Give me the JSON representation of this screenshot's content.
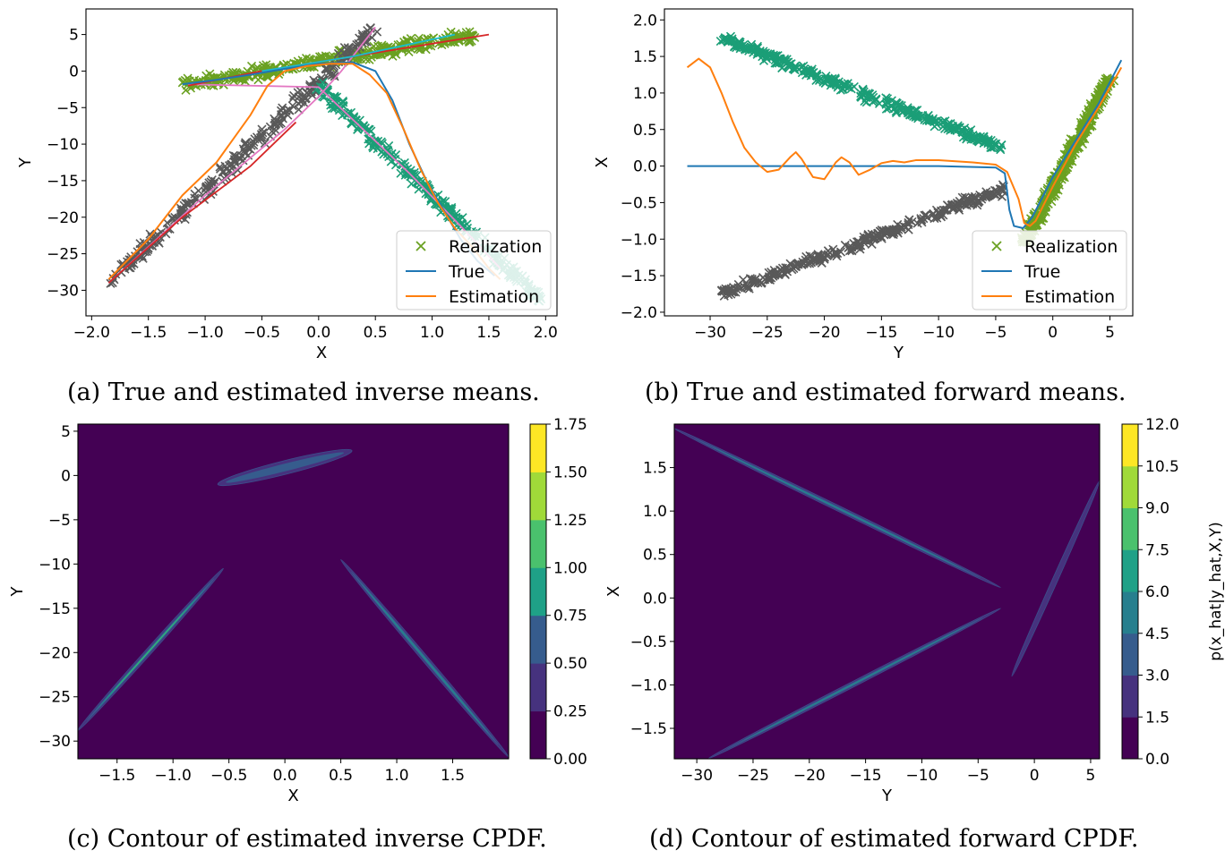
{
  "captions": {
    "a": "(a) True and estimated inverse means.",
    "b": "(b) True and estimated forward means.",
    "c": "(c) Contour of estimated inverse CPDF.",
    "d": "(d) Contour of estimated forward CPDF."
  },
  "colors": {
    "realization_green": "#6aa121",
    "realization_gray": "#595959",
    "realization_teal": "#1b9e77",
    "true": "#1f77b4",
    "estimation": "#ff7f0e",
    "pink": "#e377c2",
    "red": "#d62728",
    "cyan": "#17becf",
    "contour_levels": [
      "#440154",
      "#46327e",
      "#365c8d",
      "#277f8e",
      "#1fa187",
      "#4ac16d",
      "#a0da39",
      "#fde725"
    ]
  },
  "chart_data": [
    {
      "id": "a",
      "type": "scatter",
      "xlabel": "X",
      "ylabel": "Y",
      "xlim": [
        -2.05,
        2.1
      ],
      "ylim": [
        -33.5,
        8.5
      ],
      "xticks": [
        -2.0,
        -1.5,
        -1.0,
        -0.5,
        0.0,
        0.5,
        1.0,
        1.5,
        2.0
      ],
      "xticklabels": [
        "−2.0",
        "−1.5",
        "−1.0",
        "−0.5",
        "0.0",
        "0.5",
        "1.0",
        "1.5",
        "2.0"
      ],
      "yticks": [
        5,
        0,
        -5,
        -10,
        -15,
        -20,
        -25,
        -30
      ],
      "yticklabels": [
        "5",
        "0",
        "−5",
        "−10",
        "−15",
        "−20",
        "−25",
        "−30"
      ],
      "legend": {
        "placement": "lower right",
        "entries": [
          "Realization",
          "True",
          "Estimation"
        ]
      },
      "realization_clusters": [
        {
          "color": "green",
          "from": [
            -1.2,
            -2.0
          ],
          "to": [
            1.4,
            5.0
          ],
          "spread": 1.0,
          "count": 340
        },
        {
          "color": "gray",
          "from": [
            -1.85,
            -29.0
          ],
          "to": [
            0.5,
            6.0
          ],
          "spread": 0.9,
          "count": 260
        },
        {
          "color": "teal",
          "from": [
            0.0,
            -2.0
          ],
          "to": [
            2.0,
            -32.0
          ],
          "spread": 1.0,
          "count": 260
        }
      ],
      "true_curve": [
        [
          -1.2,
          -1.8
        ],
        [
          -0.9,
          -1.2
        ],
        [
          -0.6,
          -0.5
        ],
        [
          -0.3,
          0.3
        ],
        [
          0.0,
          1.0
        ],
        [
          0.3,
          1.2
        ],
        [
          0.5,
          0.0
        ],
        [
          0.65,
          -4.0
        ],
        [
          0.8,
          -10.0
        ],
        [
          0.95,
          -15.0
        ],
        [
          1.1,
          -19.0
        ],
        [
          1.25,
          -23.0
        ],
        [
          1.4,
          -26.0
        ],
        [
          1.55,
          -28.0
        ]
      ],
      "estimation_curve": [
        [
          -1.85,
          -28.5
        ],
        [
          -1.5,
          -23.0
        ],
        [
          -1.2,
          -17.0
        ],
        [
          -0.9,
          -12.5
        ],
        [
          -0.6,
          -6.0
        ],
        [
          -0.45,
          -2.0
        ],
        [
          -0.3,
          0.0
        ],
        [
          -0.1,
          0.7
        ],
        [
          0.1,
          1.0
        ],
        [
          0.3,
          1.0
        ],
        [
          0.45,
          -0.5
        ],
        [
          0.6,
          -3.0
        ],
        [
          0.75,
          -8.0
        ],
        [
          0.9,
          -13.5
        ],
        [
          1.05,
          -18.0
        ],
        [
          1.2,
          -21.5
        ],
        [
          1.35,
          -24.0
        ],
        [
          1.5,
          -27.0
        ],
        [
          1.6,
          -28.5
        ]
      ],
      "extra_lines": [
        {
          "color": "pink",
          "points": [
            [
              -1.85,
              -29.0
            ],
            [
              -1.0,
              -17.0
            ],
            [
              -0.3,
              -8.0
            ],
            [
              0.0,
              -3.5
            ],
            [
              0.2,
              0.0
            ],
            [
              0.5,
              6.0
            ]
          ]
        },
        {
          "color": "pink",
          "points": [
            [
              -1.15,
              -1.8
            ],
            [
              -0.9,
              -1.9
            ],
            [
              0.0,
              -2.2
            ],
            [
              0.8,
              -14.0
            ],
            [
              1.3,
              -22.0
            ],
            [
              1.6,
              -27.0
            ]
          ]
        },
        {
          "color": "red",
          "points": [
            [
              -1.85,
              -29.0
            ],
            [
              -1.2,
              -20.0
            ],
            [
              -0.6,
              -13.0
            ],
            [
              -0.2,
              -7.0
            ]
          ]
        },
        {
          "color": "red",
          "points": [
            [
              -1.15,
              -2.0
            ],
            [
              -0.5,
              0.0
            ],
            [
              0.3,
              2.0
            ],
            [
              1.5,
              5.0
            ]
          ]
        },
        {
          "color": "cyan",
          "points": [
            [
              -0.5,
              0.0
            ],
            [
              0.3,
              2.0
            ],
            [
              1.2,
              5.0
            ]
          ]
        }
      ]
    },
    {
      "id": "b",
      "type": "scatter",
      "xlabel": "Y",
      "ylabel": "X",
      "xlim": [
        -34.0,
        7.0
      ],
      "ylim": [
        -2.05,
        2.15
      ],
      "xticks": [
        -30,
        -25,
        -20,
        -15,
        -10,
        -5,
        0,
        5
      ],
      "xticklabels": [
        "−30",
        "−25",
        "−20",
        "−15",
        "−10",
        "−5",
        "0",
        "5"
      ],
      "yticks": [
        2.0,
        1.5,
        1.0,
        0.5,
        0.0,
        -0.5,
        -1.0,
        -1.5,
        -2.0
      ],
      "yticklabels": [
        "2.0",
        "1.5",
        "1.0",
        "0.5",
        "0.0",
        "−0.5",
        "−1.0",
        "−1.5",
        "−2.0"
      ],
      "legend": {
        "placement": "lower right",
        "entries": [
          "Realization",
          "True",
          "Estimation"
        ]
      },
      "realization_clusters": [
        {
          "color": "teal",
          "from": [
            -29.0,
            1.75
          ],
          "to": [
            -4.5,
            0.25
          ],
          "spread": 0.06,
          "count": 330
        },
        {
          "color": "gray",
          "from": [
            -29.0,
            -1.75
          ],
          "to": [
            -4.0,
            -0.3
          ],
          "spread": 0.06,
          "count": 300
        },
        {
          "color": "green",
          "from": [
            -2.5,
            -1.05
          ],
          "to": [
            5.0,
            1.2
          ],
          "spread": 0.09,
          "count": 420
        }
      ],
      "true_curve": [
        [
          -32.0,
          0.0
        ],
        [
          -10.0,
          0.0
        ],
        [
          -5.0,
          -0.02
        ],
        [
          -4.2,
          -0.1
        ],
        [
          -3.8,
          -0.6
        ],
        [
          -3.4,
          -0.82
        ],
        [
          -2.6,
          -0.85
        ],
        [
          -1.8,
          -0.7
        ],
        [
          0.0,
          -0.15
        ],
        [
          2.0,
          0.35
        ],
        [
          4.0,
          0.85
        ],
        [
          6.0,
          1.45
        ]
      ],
      "estimation_curve": [
        [
          -32.0,
          1.35
        ],
        [
          -31.0,
          1.47
        ],
        [
          -30.0,
          1.35
        ],
        [
          -29.0,
          1.0
        ],
        [
          -28.0,
          0.6
        ],
        [
          -27.0,
          0.25
        ],
        [
          -26.0,
          0.05
        ],
        [
          -25.0,
          -0.08
        ],
        [
          -24.0,
          -0.05
        ],
        [
          -23.0,
          0.12
        ],
        [
          -22.5,
          0.19
        ],
        [
          -22.0,
          0.1
        ],
        [
          -21.0,
          -0.15
        ],
        [
          -20.0,
          -0.18
        ],
        [
          -19.0,
          0.05
        ],
        [
          -18.5,
          0.12
        ],
        [
          -17.8,
          0.05
        ],
        [
          -17.0,
          -0.12
        ],
        [
          -16.0,
          -0.05
        ],
        [
          -15.0,
          0.04
        ],
        [
          -14.0,
          0.07
        ],
        [
          -13.0,
          0.05
        ],
        [
          -12.0,
          0.08
        ],
        [
          -10.0,
          0.08
        ],
        [
          -7.0,
          0.05
        ],
        [
          -5.0,
          0.02
        ],
        [
          -4.0,
          -0.08
        ],
        [
          -3.0,
          -0.45
        ],
        [
          -2.5,
          -0.78
        ],
        [
          -2.0,
          -0.82
        ],
        [
          -1.5,
          -0.75
        ],
        [
          0.0,
          -0.28
        ],
        [
          2.0,
          0.3
        ],
        [
          4.0,
          0.8
        ],
        [
          6.0,
          1.35
        ]
      ]
    },
    {
      "id": "c",
      "type": "heatmap",
      "xlabel": "X",
      "ylabel": "Y",
      "xlim": [
        -1.85,
        2.0
      ],
      "ylim": [
        -32.0,
        5.8
      ],
      "xticks": [
        -1.5,
        -1.0,
        -0.5,
        0.0,
        0.5,
        1.0,
        1.5
      ],
      "xticklabels": [
        "−1.5",
        "−1.0",
        "−0.5",
        "0.0",
        "0.5",
        "1.0",
        "1.5"
      ],
      "yticks": [
        5,
        0,
        -5,
        -10,
        -15,
        -20,
        -25,
        -30
      ],
      "yticklabels": [
        "5",
        "0",
        "−5",
        "−10",
        "−15",
        "−20",
        "−25",
        "−30"
      ],
      "colorbar": {
        "label": "",
        "levels": [
          "0.00",
          "0.25",
          "0.50",
          "0.75",
          "1.00",
          "1.25",
          "1.50",
          "1.75"
        ]
      },
      "ridges": [
        {
          "from": [
            -0.6,
            -1.0
          ],
          "to": [
            0.6,
            2.8
          ],
          "width": 1.1,
          "peak_level": 2
        },
        {
          "from": [
            -1.85,
            -28.8
          ],
          "to": [
            -0.55,
            -10.5
          ],
          "width": 0.7,
          "peak_level": 5
        },
        {
          "from": [
            0.5,
            -9.5
          ],
          "to": [
            2.0,
            -31.8
          ],
          "width": 0.7,
          "peak_level": 3
        }
      ]
    },
    {
      "id": "d",
      "type": "heatmap",
      "xlabel": "Y",
      "ylabel": "X",
      "xlim": [
        -32.0,
        5.8
      ],
      "ylim": [
        -1.85,
        2.0
      ],
      "xticks": [
        -30,
        -25,
        -20,
        -15,
        -10,
        -5,
        0,
        5
      ],
      "xticklabels": [
        "−30",
        "−25",
        "−20",
        "−15",
        "−10",
        "−5",
        "0",
        "5"
      ],
      "yticks": [
        1.5,
        1.0,
        0.5,
        0.0,
        -0.5,
        -1.0,
        -1.5
      ],
      "yticklabels": [
        "1.5",
        "1.0",
        "0.5",
        "0.0",
        "−0.5",
        "−1.0",
        "−1.5"
      ],
      "colorbar": {
        "label": "p(x_hat|y_hat,X,Y)",
        "levels": [
          "0.0",
          "1.5",
          "3.0",
          "4.5",
          "6.0",
          "7.5",
          "9.0",
          "10.5",
          "12.0"
        ]
      },
      "ridges": [
        {
          "from": [
            -32.0,
            1.95
          ],
          "to": [
            -3.0,
            0.12
          ],
          "width": 0.045,
          "peak_level": 3
        },
        {
          "from": [
            -29.0,
            -1.85
          ],
          "to": [
            -3.0,
            -0.12
          ],
          "width": 0.045,
          "peak_level": 3
        },
        {
          "from": [
            -2.0,
            -0.9
          ],
          "to": [
            5.8,
            1.35
          ],
          "width": 0.05,
          "peak_level": 1
        }
      ]
    }
  ]
}
